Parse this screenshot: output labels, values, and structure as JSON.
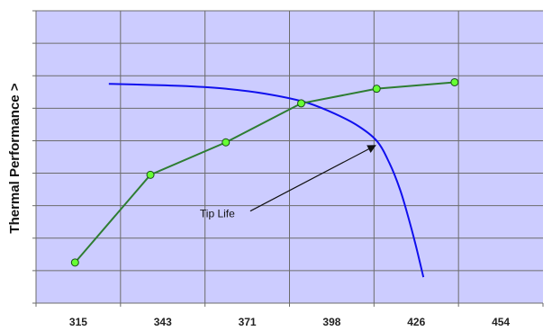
{
  "chart_data": {
    "type": "line",
    "title": "",
    "xlabel": "",
    "ylabel": "Thermal Performance >",
    "x_ticks": [
      "315",
      "343",
      "371",
      "398",
      "426",
      "454"
    ],
    "xlim": [
      287,
      482
    ],
    "ylim": [
      0,
      9
    ],
    "grid": true,
    "legend": "none",
    "colors": {
      "plot_background": "#ccccff",
      "grid": "#6b6b6b",
      "axis": "#6b6b6b",
      "thermal_line": "#2e7d32",
      "thermal_marker_fill": "#66ff33",
      "tip_life_line": "#1010ee",
      "arrow": "#111111"
    },
    "series": [
      {
        "name": "",
        "role": "thermal",
        "marker": "circle",
        "x": [
          302,
          331,
          360,
          389,
          418,
          448
        ],
        "y": [
          1.25,
          3.95,
          4.95,
          6.15,
          6.6,
          6.8
        ]
      },
      {
        "name": "Tip Life",
        "role": "tip_life",
        "marker": "none",
        "x": [
          315,
          330,
          345,
          360,
          375,
          390,
          400,
          410,
          418,
          423,
          427,
          430,
          433,
          436
        ],
        "y": [
          6.75,
          6.72,
          6.68,
          6.6,
          6.45,
          6.2,
          5.9,
          5.5,
          5.0,
          4.3,
          3.5,
          2.7,
          1.8,
          0.8
        ]
      }
    ],
    "annotations": [
      {
        "text": "Tip Life",
        "x": 350,
        "y": 2.75,
        "arrow_to": [
          417.5,
          4.85
        ]
      }
    ]
  }
}
